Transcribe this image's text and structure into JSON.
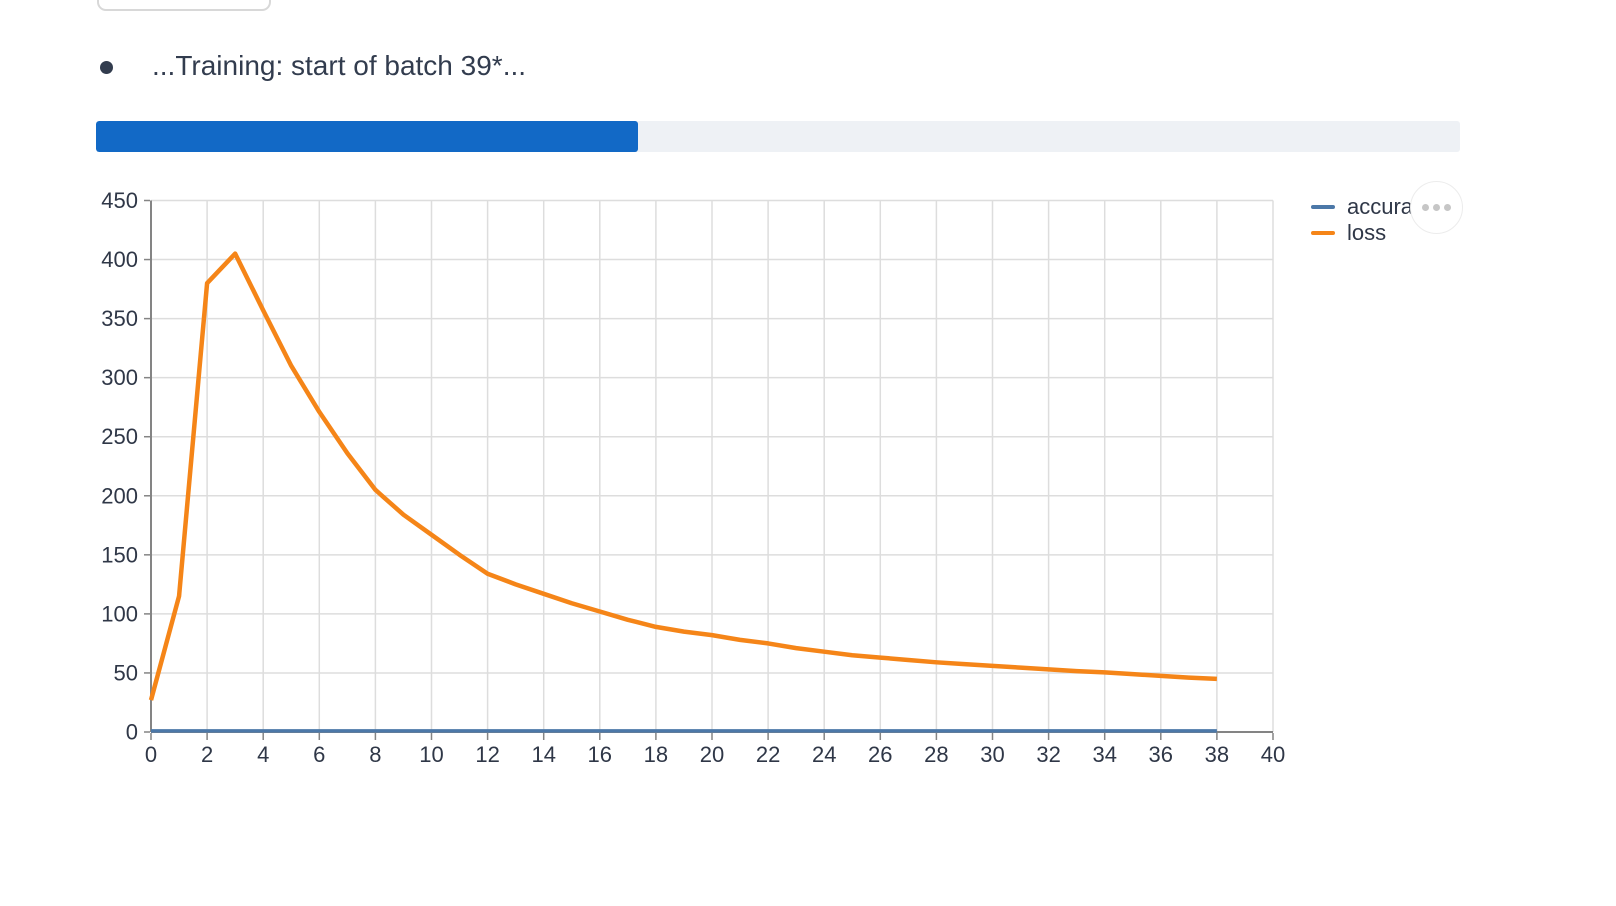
{
  "output_line": {
    "bullet": "•",
    "text": "...Training: start of batch 39*..."
  },
  "progress": {
    "percent": 39.7,
    "fill_color": "#1269c6",
    "track_color": "#eef1f5"
  },
  "chart_data": {
    "type": "line",
    "title": "",
    "xlabel": "",
    "ylabel": "",
    "x": [
      0,
      1,
      2,
      3,
      4,
      5,
      6,
      7,
      8,
      9,
      10,
      11,
      12,
      13,
      14,
      15,
      16,
      17,
      18,
      19,
      20,
      21,
      22,
      23,
      24,
      25,
      26,
      27,
      28,
      29,
      30,
      31,
      32,
      33,
      34,
      35,
      36,
      37,
      38
    ],
    "series": [
      {
        "name": "accuracy",
        "color": "#4c78a8",
        "values": [
          1,
          1,
          1,
          1,
          1,
          1,
          1,
          1,
          1,
          1,
          1,
          1,
          1,
          1,
          1,
          1,
          1,
          1,
          1,
          1,
          1,
          1,
          1,
          1,
          1,
          1,
          1,
          1,
          1,
          1,
          1,
          1,
          1,
          1,
          1,
          1,
          1,
          1,
          1
        ]
      },
      {
        "name": "loss",
        "color": "#f58518",
        "values": [
          27,
          115,
          380,
          405,
          357,
          310,
          271,
          236,
          205,
          184,
          167,
          150,
          134,
          125,
          117,
          109,
          102,
          95,
          89,
          85,
          82,
          78,
          75,
          71,
          68,
          65,
          63,
          61,
          59,
          57.5,
          56,
          54.5,
          53,
          51.5,
          50.5,
          49,
          47.5,
          46,
          45
        ]
      }
    ],
    "xlim": [
      0,
      40
    ],
    "ylim": [
      0,
      450
    ],
    "x_tick_step": 2,
    "y_tick_step": 50,
    "x_tick_labels": [
      "0",
      "2",
      "4",
      "6",
      "8",
      "10",
      "12",
      "14",
      "16",
      "18",
      "20",
      "22",
      "24",
      "26",
      "28",
      "30",
      "32",
      "34",
      "36",
      "38",
      "40"
    ],
    "y_tick_labels": [
      "0",
      "50",
      "100",
      "150",
      "200",
      "250",
      "300",
      "350",
      "400",
      "450"
    ],
    "grid": true,
    "legend_position": "right",
    "colors": {
      "grid": "#dddddd",
      "axis_domain": "#848484",
      "tick_label": "#2f3747"
    }
  },
  "actions_menu": {
    "icon": "ellipsis-menu"
  }
}
